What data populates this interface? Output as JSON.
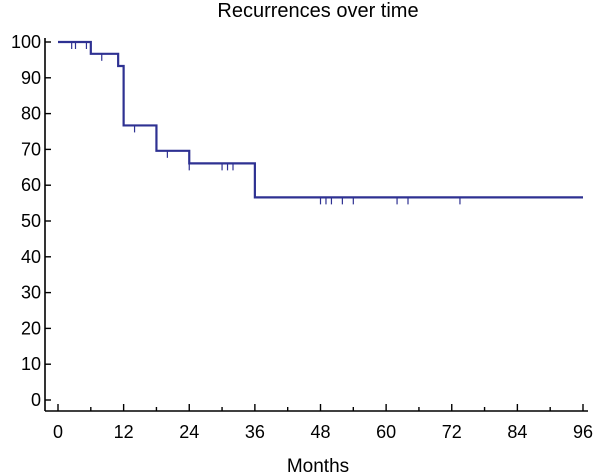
{
  "chart_data": {
    "type": "line",
    "title": "Recurrences over time",
    "xlabel": "Months",
    "ylabel": "",
    "xlim": [
      0,
      96
    ],
    "ylim": [
      0,
      100
    ],
    "x_ticks": [
      0,
      12,
      24,
      36,
      48,
      60,
      72,
      84,
      96
    ],
    "y_ticks": [
      0,
      10,
      20,
      30,
      40,
      50,
      60,
      70,
      80,
      90,
      100
    ],
    "grid": false,
    "legend": "none",
    "line_color": "#2e3192",
    "series": [
      {
        "step": true,
        "x": [
          0,
          6,
          11,
          12,
          18,
          24,
          36,
          96
        ],
        "y": [
          100,
          96.7,
          93.3,
          76.7,
          69.6,
          66.1,
          56.6,
          56.6
        ],
        "censored": [
          {
            "x": 2.5,
            "y": 100
          },
          {
            "x": 3.2,
            "y": 100
          },
          {
            "x": 5.2,
            "y": 100
          },
          {
            "x": 8.0,
            "y": 96.7
          },
          {
            "x": 14.0,
            "y": 76.7
          },
          {
            "x": 20.0,
            "y": 69.6
          },
          {
            "x": 24.0,
            "y": 66.1
          },
          {
            "x": 30.0,
            "y": 66.1
          },
          {
            "x": 31.0,
            "y": 66.1
          },
          {
            "x": 32.0,
            "y": 66.1
          },
          {
            "x": 48.0,
            "y": 56.6
          },
          {
            "x": 49.0,
            "y": 56.6
          },
          {
            "x": 50.0,
            "y": 56.6
          },
          {
            "x": 52.0,
            "y": 56.6
          },
          {
            "x": 54.0,
            "y": 56.6
          },
          {
            "x": 62.0,
            "y": 56.6
          },
          {
            "x": 64.0,
            "y": 56.6
          },
          {
            "x": 73.5,
            "y": 56.6
          }
        ]
      }
    ]
  }
}
